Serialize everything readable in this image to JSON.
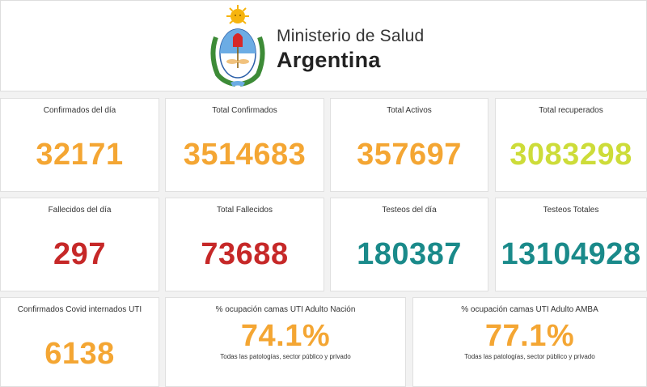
{
  "header": {
    "ministry": "Ministerio de Salud",
    "country": "Argentina"
  },
  "colors": {
    "orange": "#f4a633",
    "lime": "#cddc39",
    "red": "#c62828",
    "teal": "#1a8a8a"
  },
  "row1": [
    {
      "label": "Confirmados del día",
      "value": "32171"
    },
    {
      "label": "Total Confirmados",
      "value": "3514683"
    },
    {
      "label": "Total Activos",
      "value": "357697"
    },
    {
      "label": "Total recuperados",
      "value": "3083298"
    }
  ],
  "row2": [
    {
      "label": "Fallecidos del día",
      "value": "297"
    },
    {
      "label": "Total Fallecidos",
      "value": "73688"
    },
    {
      "label": "Testeos del día",
      "value": "180387"
    },
    {
      "label": "Testeos Totales",
      "value": "13104928"
    }
  ],
  "row3": [
    {
      "label": "Confirmados Covid internados UTI",
      "value": "6138"
    },
    {
      "label": "% ocupación camas UTI Adulto Nación",
      "value": "74.1%",
      "note": "Todas las patologías, sector público y privado"
    },
    {
      "label": "% ocupación camas UTI Adulto AMBA",
      "value": "77.1%",
      "note": "Todas las patologías, sector público y privado"
    }
  ]
}
